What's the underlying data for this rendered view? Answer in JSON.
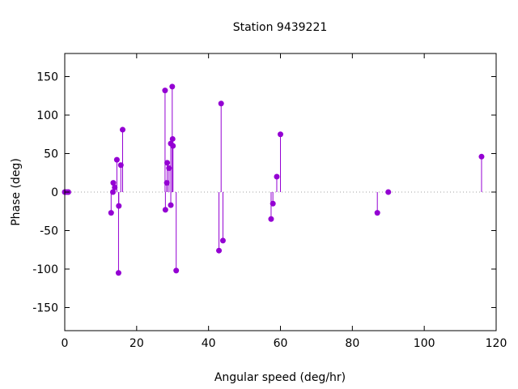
{
  "chart_data": {
    "type": "scatter",
    "title": "Station 9439221",
    "xlabel": "Angular speed (deg/hr)",
    "ylabel": "Phase (deg)",
    "xlim": [
      0,
      120
    ],
    "ylim": [
      -180,
      180
    ],
    "xticks": [
      0,
      20,
      40,
      60,
      80,
      100,
      120
    ],
    "yticks": [
      -150,
      -100,
      -50,
      0,
      50,
      100,
      150
    ],
    "xtick_labels": [
      "0",
      "20",
      "40",
      "60",
      "80",
      "100",
      "120"
    ],
    "ytick_labels": [
      "-150",
      "-100",
      "-50",
      "0",
      "50",
      "100",
      "150"
    ],
    "grid": false,
    "zero_line": true,
    "style": "impulses-with-points",
    "colors": {
      "series": "#9400d3",
      "zero_line": "#a0a0a0",
      "axes": "#000000"
    },
    "series": [
      {
        "x": [
          0.0,
          0.5,
          1.0,
          12.9,
          13.4,
          13.5,
          13.9,
          14.5,
          14.96,
          15.04,
          15.6,
          16.1,
          27.9,
          28.0,
          28.4,
          28.5,
          29.0,
          29.5,
          29.5,
          29.9,
          30.0,
          30.1,
          31.0,
          42.9,
          43.5,
          44.0,
          57.4,
          57.9,
          58.98,
          60.0,
          86.95,
          90.0,
          115.94
        ],
        "y": [
          0,
          0,
          0,
          -27,
          0,
          12,
          6,
          42,
          -105,
          -18,
          35,
          81,
          132,
          -23,
          12,
          38,
          31,
          -17,
          63,
          137,
          69,
          60,
          -102,
          -76,
          115,
          -63,
          -35,
          -15,
          20,
          75,
          -27,
          0,
          46
        ]
      }
    ]
  }
}
